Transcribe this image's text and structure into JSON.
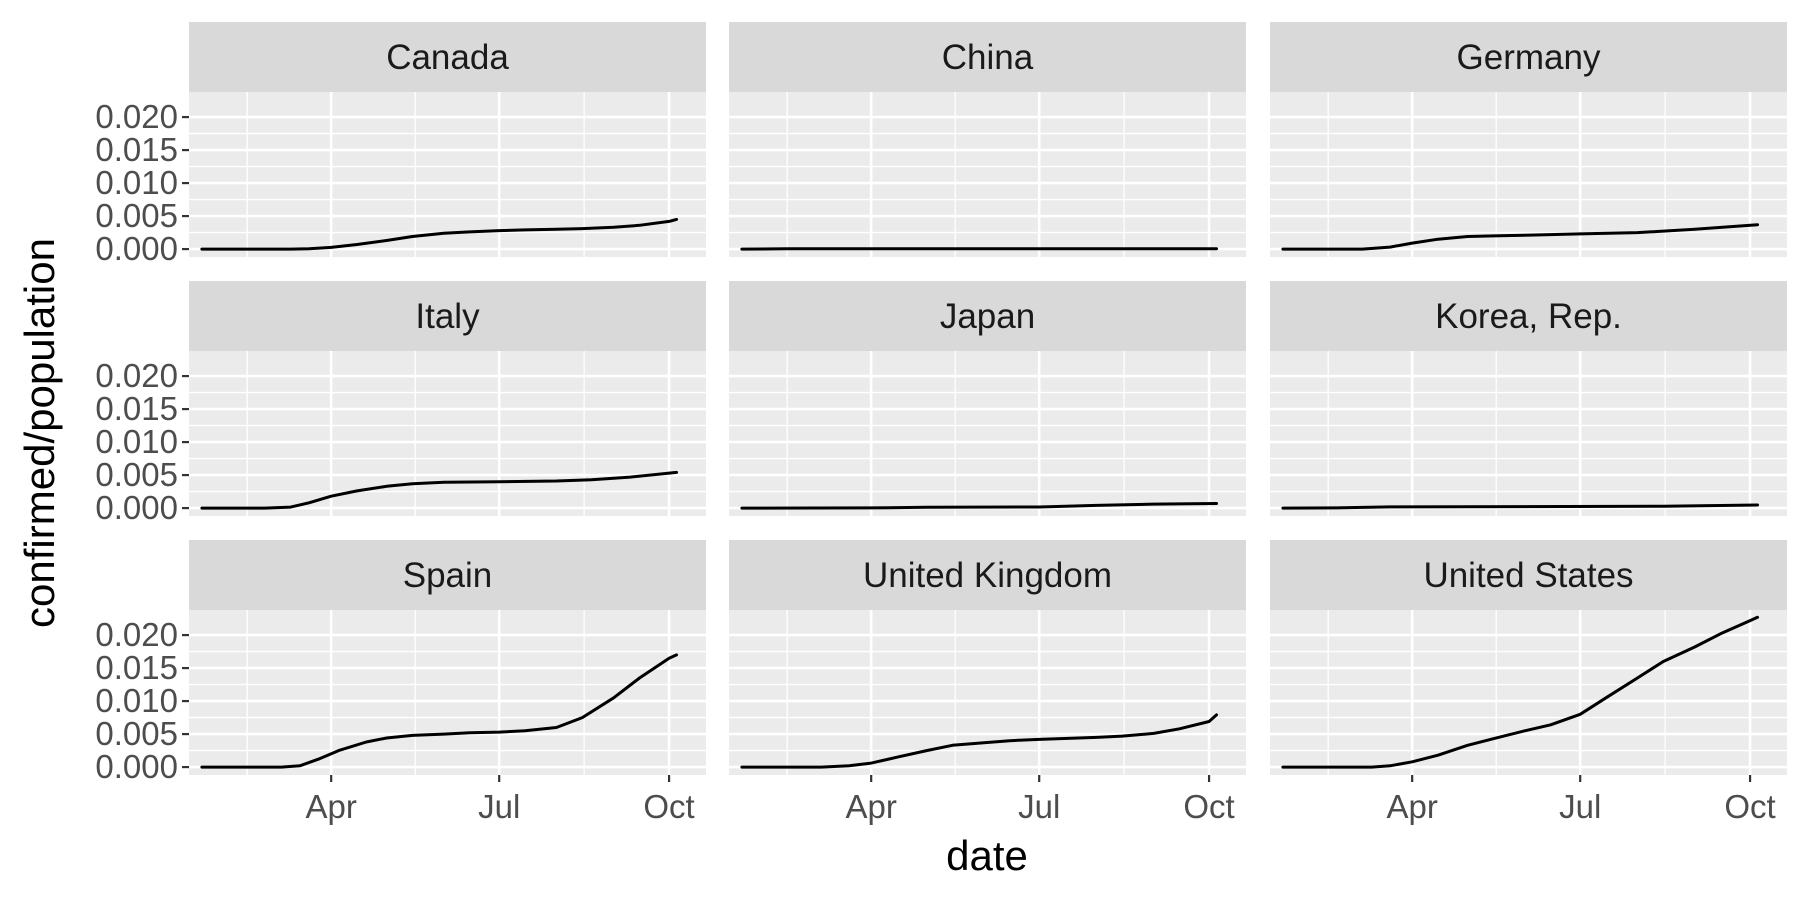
{
  "chart_data": {
    "type": "line",
    "facet_layout": "3x3 grid, shared axes",
    "xlabel": "date",
    "ylabel": "confirmed/population",
    "x_ticks": [
      "Apr",
      "Jul",
      "Oct"
    ],
    "x_tick_dates": [
      "2020-04-01",
      "2020-07-01",
      "2020-10-01"
    ],
    "xlim": [
      "2020-01-15",
      "2020-10-21"
    ],
    "y_ticks": [
      "0.000",
      "0.005",
      "0.010",
      "0.015",
      "0.020"
    ],
    "ylim": [
      -0.0012,
      0.0238
    ],
    "grid": true,
    "line_color": "#000000",
    "panel_background": "#ebebeb",
    "strip_background": "#d9d9d9",
    "gridline_color": "#ffffff",
    "panels": [
      {
        "label": "Canada",
        "points": [
          [
            "2020-01-22",
            0
          ],
          [
            "2020-03-10",
            0
          ],
          [
            "2020-03-20",
            5e-05
          ],
          [
            "2020-04-01",
            0.00025
          ],
          [
            "2020-04-15",
            0.0007
          ],
          [
            "2020-05-01",
            0.0013
          ],
          [
            "2020-05-15",
            0.0019
          ],
          [
            "2020-06-01",
            0.0024
          ],
          [
            "2020-06-15",
            0.0026
          ],
          [
            "2020-07-01",
            0.0028
          ],
          [
            "2020-07-15",
            0.0029
          ],
          [
            "2020-08-01",
            0.003
          ],
          [
            "2020-08-15",
            0.0031
          ],
          [
            "2020-09-01",
            0.0033
          ],
          [
            "2020-09-15",
            0.0036
          ],
          [
            "2020-10-01",
            0.0042
          ],
          [
            "2020-10-05",
            0.0045
          ]
        ]
      },
      {
        "label": "China",
        "points": [
          [
            "2020-01-22",
            0
          ],
          [
            "2020-02-15",
            4e-05
          ],
          [
            "2020-03-01",
            6e-05
          ],
          [
            "2020-06-01",
            6e-05
          ],
          [
            "2020-10-05",
            6e-05
          ]
        ]
      },
      {
        "label": "Germany",
        "points": [
          [
            "2020-01-22",
            0
          ],
          [
            "2020-03-05",
            0
          ],
          [
            "2020-03-20",
            0.0003
          ],
          [
            "2020-04-01",
            0.0009
          ],
          [
            "2020-04-15",
            0.0015
          ],
          [
            "2020-05-01",
            0.0019
          ],
          [
            "2020-05-15",
            0.002
          ],
          [
            "2020-06-01",
            0.0021
          ],
          [
            "2020-07-01",
            0.0023
          ],
          [
            "2020-08-01",
            0.0025
          ],
          [
            "2020-09-01",
            0.003
          ],
          [
            "2020-10-05",
            0.0037
          ]
        ]
      },
      {
        "label": "Italy",
        "points": [
          [
            "2020-01-22",
            0
          ],
          [
            "2020-02-25",
            0
          ],
          [
            "2020-03-10",
            0.00015
          ],
          [
            "2020-03-20",
            0.0008
          ],
          [
            "2020-04-01",
            0.0018
          ],
          [
            "2020-04-15",
            0.0026
          ],
          [
            "2020-05-01",
            0.0033
          ],
          [
            "2020-05-15",
            0.0037
          ],
          [
            "2020-06-01",
            0.0039
          ],
          [
            "2020-07-01",
            0.004
          ],
          [
            "2020-08-01",
            0.0041
          ],
          [
            "2020-08-20",
            0.0043
          ],
          [
            "2020-09-10",
            0.0047
          ],
          [
            "2020-10-05",
            0.0054
          ]
        ]
      },
      {
        "label": "Japan",
        "points": [
          [
            "2020-01-22",
            0
          ],
          [
            "2020-04-01",
            2e-05
          ],
          [
            "2020-05-01",
            0.00012
          ],
          [
            "2020-07-01",
            0.00016
          ],
          [
            "2020-08-01",
            0.0004
          ],
          [
            "2020-09-01",
            0.0006
          ],
          [
            "2020-10-05",
            0.0007
          ]
        ]
      },
      {
        "label": "Korea, Rep.",
        "points": [
          [
            "2020-01-22",
            0
          ],
          [
            "2020-02-20",
            2e-05
          ],
          [
            "2020-03-05",
            0.0001
          ],
          [
            "2020-03-20",
            0.00018
          ],
          [
            "2020-06-01",
            0.00022
          ],
          [
            "2020-08-15",
            0.00028
          ],
          [
            "2020-10-05",
            0.00047
          ]
        ]
      },
      {
        "label": "Spain",
        "points": [
          [
            "2020-01-22",
            0
          ],
          [
            "2020-03-05",
            0
          ],
          [
            "2020-03-15",
            0.0002
          ],
          [
            "2020-03-25",
            0.0012
          ],
          [
            "2020-04-05",
            0.0025
          ],
          [
            "2020-04-20",
            0.0038
          ],
          [
            "2020-05-01",
            0.0044
          ],
          [
            "2020-05-15",
            0.0048
          ],
          [
            "2020-06-01",
            0.005
          ],
          [
            "2020-06-15",
            0.0052
          ],
          [
            "2020-07-01",
            0.0053
          ],
          [
            "2020-07-15",
            0.0055
          ],
          [
            "2020-08-01",
            0.006
          ],
          [
            "2020-08-15",
            0.0075
          ],
          [
            "2020-09-01",
            0.0105
          ],
          [
            "2020-09-15",
            0.0135
          ],
          [
            "2020-10-01",
            0.0165
          ],
          [
            "2020-10-05",
            0.017
          ]
        ]
      },
      {
        "label": "United Kingdom",
        "points": [
          [
            "2020-01-22",
            0
          ],
          [
            "2020-03-05",
            0
          ],
          [
            "2020-03-20",
            0.0002
          ],
          [
            "2020-04-01",
            0.0006
          ],
          [
            "2020-04-15",
            0.0015
          ],
          [
            "2020-05-01",
            0.0025
          ],
          [
            "2020-05-15",
            0.0033
          ],
          [
            "2020-06-01",
            0.0037
          ],
          [
            "2020-06-15",
            0.004
          ],
          [
            "2020-07-01",
            0.0042
          ],
          [
            "2020-08-01",
            0.0045
          ],
          [
            "2020-08-15",
            0.0047
          ],
          [
            "2020-09-01",
            0.0051
          ],
          [
            "2020-09-15",
            0.0058
          ],
          [
            "2020-10-01",
            0.0069
          ],
          [
            "2020-10-05",
            0.0079
          ]
        ]
      },
      {
        "label": "United States",
        "points": [
          [
            "2020-01-22",
            0
          ],
          [
            "2020-03-10",
            0
          ],
          [
            "2020-03-20",
            0.0002
          ],
          [
            "2020-04-01",
            0.0008
          ],
          [
            "2020-04-15",
            0.0018
          ],
          [
            "2020-05-01",
            0.0033
          ],
          [
            "2020-05-15",
            0.0043
          ],
          [
            "2020-06-01",
            0.0055
          ],
          [
            "2020-06-15",
            0.0064
          ],
          [
            "2020-07-01",
            0.008
          ],
          [
            "2020-07-15",
            0.0105
          ],
          [
            "2020-08-01",
            0.0135
          ],
          [
            "2020-08-15",
            0.016
          ],
          [
            "2020-09-01",
            0.0182
          ],
          [
            "2020-09-15",
            0.0202
          ],
          [
            "2020-10-01",
            0.0222
          ],
          [
            "2020-10-05",
            0.0227
          ]
        ]
      }
    ]
  }
}
